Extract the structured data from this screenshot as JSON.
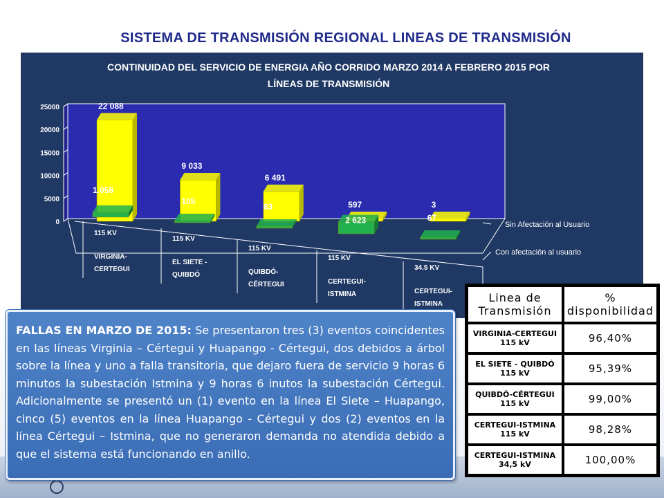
{
  "page_title": "SISTEMA DE TRANSMISIÓN REGIONAL LINEAS DE TRANSMISIÓN",
  "chart_data": {
    "type": "bar",
    "title": "CONTINUIDAD DEL SERVICIO DE ENERGIA AÑO CORRIDO MARZO 2014 A  FEBRERO 2015 POR LÍNEAS DE TRANSMISIÓN",
    "title_lines": [
      "CONTINUIDAD DEL SERVICIO DE ENERGIA AÑO CORRIDO MARZO 2014 A  FEBRERO 2015 POR",
      "LÍNEAS DE TRANSMISIÓN"
    ],
    "categories": [
      {
        "voltage": "115 KV",
        "line1": "VIRGINIA-",
        "line2": "CERTEGUI"
      },
      {
        "voltage": "115 KV",
        "line1": "EL SIETE -",
        "line2": "QUIBDÓ"
      },
      {
        "voltage": "115 KV",
        "line1": "QUIBDÓ-",
        "line2": "CÉRTEGUI"
      },
      {
        "voltage": "115 KV",
        "line1": "CERTEGUI-",
        "line2": "ISTMINA"
      },
      {
        "voltage": "34.5 KV",
        "line1": "CERTEGUI-",
        "line2": "ISTMINA"
      }
    ],
    "series": [
      {
        "name": "Sin Afectación al Usuario",
        "values": [
          22088,
          9033,
          6491,
          597,
          3
        ],
        "labels": [
          "22 088",
          "9 033",
          "6 491",
          "597",
          "3"
        ],
        "color": "#ffff00"
      },
      {
        "name": "Con afectación al usuario",
        "values": [
          1058,
          105,
          63,
          2623,
          67
        ],
        "labels": [
          "1.058",
          "105",
          "63",
          "2 623",
          "67"
        ],
        "color": "#22b14c"
      }
    ],
    "ylim": [
      0,
      25000
    ],
    "yticks": [
      "0",
      "5000",
      "10000",
      "15000",
      "20000",
      "25000"
    ],
    "grid": false,
    "legend": "right"
  },
  "info_box": {
    "lead": "FALLAS EN MARZO DE 2015:",
    "text": " Se presentaron tres (3) eventos coincidentes en las líneas Virginia – Cértegui y Huapango - Cértegui, dos debidos a árbol sobre la línea y uno a falla transitoria, que dejaro fuera de servicio 9 horas 6 minutos la subestación Istmina y 9 horas 6 inutos la subestación Cértegui. Adicionalmente se presentó un (1) evento en la línea El Siete – Huapango, cinco (5) eventos en la línea Huapango - Cértegui y dos (2) eventos en la línea Cértegui – Istmina, que no generaron demanda no atendida debido a que el sistema está funcionando en anillo."
  },
  "availability_table": {
    "header_name": [
      "Linea de",
      "Transmisión"
    ],
    "header_value": [
      "%",
      "disponibilidad"
    ],
    "rows": [
      {
        "name": "VIRGINIA-CERTEGUI",
        "voltage": "115 kV",
        "value": "96,40%"
      },
      {
        "name": "EL SIETE - QUIBDÓ",
        "voltage": "115 kV",
        "value": "95,39%"
      },
      {
        "name": "QUIBDÓ-CÉRTEGUI",
        "voltage": "115 kV",
        "value": "99,00%"
      },
      {
        "name": "CERTEGUI-ISTMINA",
        "voltage": "115 kV",
        "value": "98,28%"
      },
      {
        "name": "CERTEGUI-ISTMINA",
        "voltage": "34,5 kV",
        "value": "100,00%"
      }
    ]
  }
}
